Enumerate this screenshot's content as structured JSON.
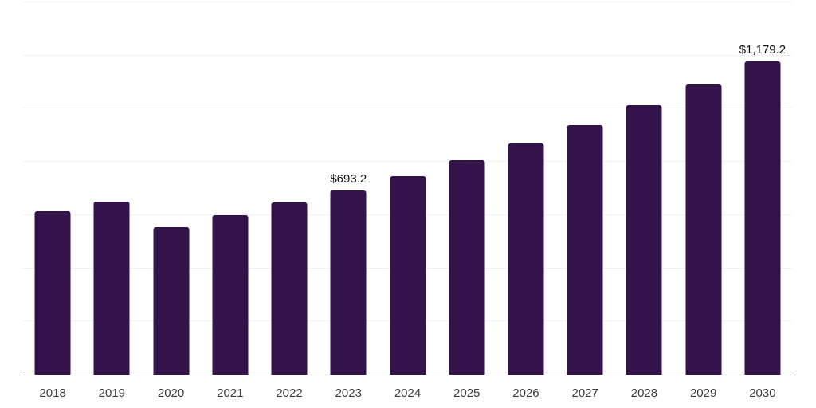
{
  "chart_data": {
    "type": "bar",
    "title": "",
    "xlabel": "",
    "ylabel": "",
    "categories": [
      "2018",
      "2019",
      "2020",
      "2021",
      "2022",
      "2023",
      "2024",
      "2025",
      "2026",
      "2027",
      "2028",
      "2029",
      "2030"
    ],
    "values": [
      614.9,
      651.0,
      554.6,
      599.8,
      646.8,
      693.2,
      747.8,
      806.6,
      870.1,
      938.7,
      1012.6,
      1092.5,
      1179.2
    ],
    "data_labels": {
      "2023": "$693.2",
      "2030": "$1,179.2"
    },
    "value_prefix": "$",
    "ylim": [
      0,
      1400
    ],
    "grid_step": 200,
    "grid": "horizontal",
    "legend": "none",
    "colors": {
      "bar": "#331349",
      "gridline": "#f1f1f2",
      "axis_line": "#2b2b2b",
      "tick_label": "#3d3d3d",
      "data_label": "#101010"
    }
  }
}
